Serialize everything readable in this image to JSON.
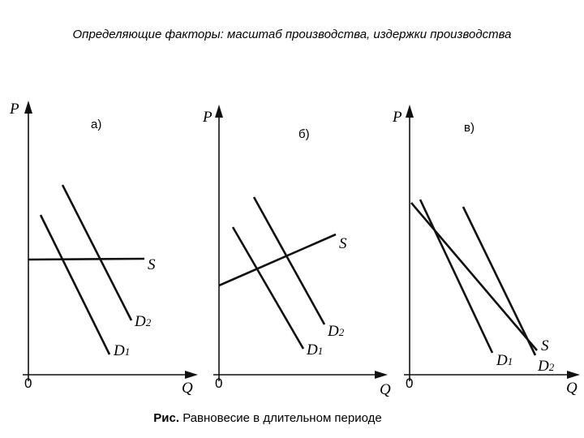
{
  "header": {
    "title": "Определяющие факторы: масштаб производства, издержки производства"
  },
  "panels": [
    {
      "label": "а)",
      "y_axis": "P",
      "x_axis": "Q",
      "origin": "0",
      "curves": [
        {
          "name": "S"
        },
        {
          "name": "D",
          "sub": "1"
        },
        {
          "name": "D",
          "sub": "2"
        }
      ]
    },
    {
      "label": "б)",
      "y_axis": "P",
      "x_axis": "Q",
      "origin": "0",
      "curves": [
        {
          "name": "S"
        },
        {
          "name": "D",
          "sub": "1"
        },
        {
          "name": "D",
          "sub": "2"
        }
      ]
    },
    {
      "label": "в)",
      "y_axis": "P",
      "x_axis": "Q",
      "origin": "0",
      "curves": [
        {
          "name": "S"
        },
        {
          "name": "D",
          "sub": "1"
        },
        {
          "name": "D",
          "sub": "2"
        }
      ]
    }
  ],
  "caption": {
    "prefix": "Рис.",
    "text": "Равновесие в длительном периоде"
  }
}
